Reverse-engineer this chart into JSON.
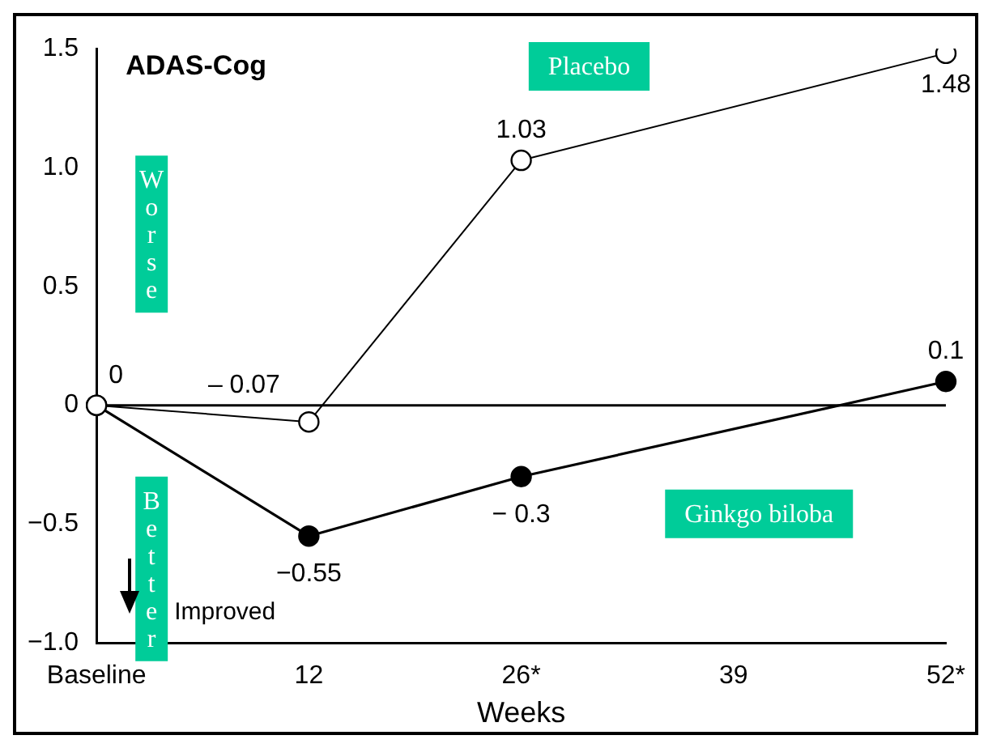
{
  "chart_data": {
    "type": "line",
    "title": "ADAS-Cog",
    "xlabel": "Weeks",
    "categories": [
      "Baseline",
      "12",
      "26*",
      "39",
      "52*"
    ],
    "series": [
      {
        "name": "Placebo",
        "color": "#000000",
        "values": [
          0,
          -0.07,
          1.03,
          null,
          1.48
        ],
        "value_labels": [
          "0",
          "– 0.07",
          "1.03",
          null,
          "1.48"
        ]
      },
      {
        "name": "Ginkgo biloba",
        "color": "#000000",
        "values": [
          0,
          -0.55,
          -0.3,
          null,
          0.1
        ],
        "value_labels": [
          null,
          "−0.55",
          "− 0.3",
          null,
          "0.1"
        ]
      }
    ],
    "ylim": [
      -1.0,
      1.5
    ],
    "yticks": [
      {
        "value": -1,
        "label": "−1.0"
      },
      {
        "value": -0.5,
        "label": "−0.5"
      },
      0,
      {
        "value": 0.5,
        "label": "0.5"
      },
      {
        "value": 1,
        "label": "1.0"
      },
      {
        "value": 1.5,
        "label": "1.5"
      }
    ],
    "ref_lines": [
      {
        "axis": "y",
        "value": 0,
        "color": "#000000"
      }
    ],
    "annotations": [
      "Worse",
      "Better",
      "Improved"
    ],
    "grid": false,
    "legend": false,
    "marker": "circle",
    "line_style": "solid"
  }
}
